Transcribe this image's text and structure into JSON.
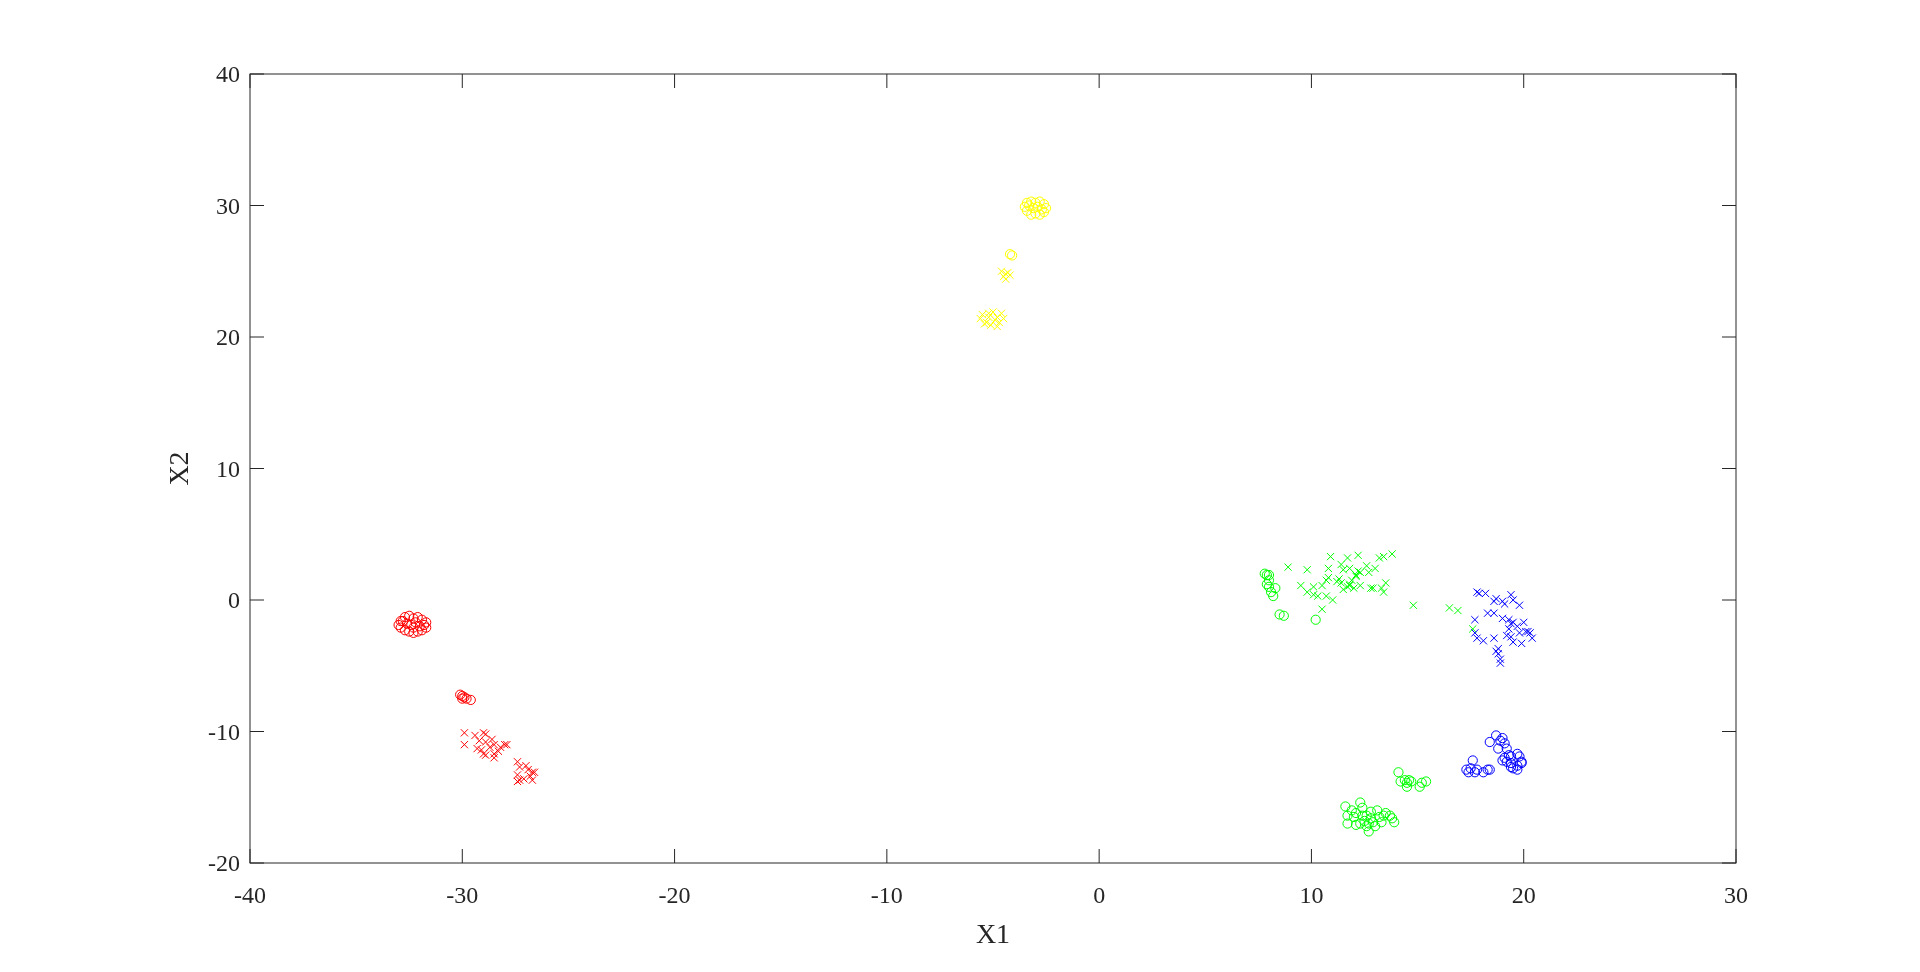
{
  "chart_data": {
    "type": "scatter",
    "xlabel": "X1",
    "ylabel": "X2",
    "xlim": [
      -40,
      30
    ],
    "xticks": [
      -40,
      -30,
      -20,
      -10,
      0,
      10,
      20,
      30
    ],
    "ylim": [
      -20,
      40
    ],
    "yticks": [
      -20,
      -10,
      0,
      10,
      20,
      30,
      40
    ],
    "series": [
      {
        "color": "#ff0000",
        "marker": "circle",
        "x": [
          -32.9,
          -32.7,
          -32.5,
          -32.3,
          -32.1,
          -31.9,
          -31.7,
          -31.7,
          -31.9,
          -32.1,
          -32.3,
          -32.5,
          -32.7,
          -32.9,
          -33.0,
          -32.6,
          -32.4,
          -32.2,
          -32.0,
          -32.8,
          -32.3,
          -31.8,
          -30.1,
          -30.0,
          -29.9,
          -29.8,
          -29.6,
          -30.0
        ],
        "values": [
          -1.6,
          -1.3,
          -1.2,
          -1.4,
          -1.3,
          -1.5,
          -1.7,
          -2.1,
          -2.3,
          -2.4,
          -2.5,
          -2.4,
          -2.3,
          -2.1,
          -1.9,
          -1.8,
          -1.9,
          -1.7,
          -2.0,
          -1.6,
          -2.1,
          -1.9,
          -7.2,
          -7.3,
          -7.4,
          -7.5,
          -7.6,
          -7.5
        ]
      },
      {
        "color": "#ff0000",
        "marker": "cross",
        "x": [
          -29.9,
          -29.9,
          -29.4,
          -29.2,
          -29.0,
          -28.9,
          -28.9,
          -28.6,
          -28.5,
          -29.3,
          -29.1,
          -29.0,
          -28.9,
          -28.5,
          -28.5,
          -28.3,
          -28.2,
          -28.0,
          -27.9,
          -28.7,
          -27.4,
          -27.3,
          -27.0,
          -26.9,
          -26.7,
          -27.4,
          -27.3,
          -27.1,
          -26.8,
          -26.7,
          -26.6,
          -27.4
        ],
        "values": [
          -10.1,
          -11.0,
          -10.3,
          -10.7,
          -10.1,
          -10.2,
          -10.8,
          -10.6,
          -11.0,
          -11.3,
          -11.4,
          -11.7,
          -11.8,
          -12.0,
          -11.7,
          -11.5,
          -11.2,
          -11.0,
          -11.0,
          -11.2,
          -12.3,
          -12.7,
          -12.6,
          -12.9,
          -13.1,
          -13.3,
          -13.7,
          -13.6,
          -13.4,
          -13.7,
          -13.1,
          -13.8
        ]
      },
      {
        "color": "#ffff00",
        "marker": "circle",
        "x": [
          -3.5,
          -3.4,
          -3.2,
          -3.0,
          -2.8,
          -2.6,
          -2.5,
          -2.6,
          -2.8,
          -3.0,
          -3.2,
          -3.4,
          -3.1,
          -2.9,
          -3.3,
          -2.7,
          -4.2,
          -4.1
        ],
        "values": [
          29.9,
          30.2,
          30.3,
          30.2,
          30.3,
          30.1,
          29.8,
          29.5,
          29.3,
          29.4,
          29.3,
          29.6,
          29.8,
          29.9,
          30.0,
          29.7,
          26.3,
          26.2
        ]
      },
      {
        "color": "#ffff00",
        "marker": "cross",
        "x": [
          -4.6,
          -4.4,
          -4.3,
          -4.5,
          -4.4,
          -4.2,
          -5.6,
          -5.5,
          -5.3,
          -5.2,
          -5.0,
          -4.9,
          -4.8,
          -4.7,
          -4.5,
          -5.1,
          -4.8,
          -5.2,
          -5.4,
          -4.6
        ],
        "values": [
          25.0,
          24.8,
          24.9,
          24.6,
          24.4,
          24.7,
          21.4,
          21.7,
          21.1,
          21.5,
          21.9,
          21.3,
          21.5,
          21.1,
          21.4,
          20.9,
          20.8,
          21.8,
          21.0,
          21.8
        ]
      },
      {
        "color": "#00ff00",
        "marker": "circle",
        "x": [
          7.8,
          7.9,
          8.0,
          8.0,
          7.9,
          8.0,
          8.3,
          8.1,
          8.2,
          8.5,
          8.7,
          10.2,
          11.6,
          11.7,
          11.9,
          11.7,
          12.0,
          12.1,
          12.3,
          12.4,
          12.4,
          12.3,
          12.5,
          12.6,
          12.7,
          12.8,
          12.8,
          12.9,
          13.1,
          13.2,
          13.3,
          13.4,
          13.5,
          13.7,
          13.8,
          13.9,
          12.7,
          13.0,
          12.6,
          12.1,
          14.1,
          14.2,
          14.4,
          14.5,
          14.5,
          14.6,
          15.1,
          15.2,
          15.4,
          14.7
        ],
        "values": [
          2.0,
          1.9,
          1.9,
          1.5,
          1.2,
          1.0,
          0.9,
          0.6,
          0.3,
          -1.1,
          -1.2,
          -1.5,
          -15.7,
          -16.4,
          -16.0,
          -17.0,
          -16.5,
          -16.2,
          -15.4,
          -15.8,
          -16.4,
          -17.0,
          -16.8,
          -17.2,
          -17.6,
          -16.6,
          -16.1,
          -16.9,
          -16.0,
          -16.5,
          -16.9,
          -16.4,
          -16.2,
          -16.4,
          -16.6,
          -16.9,
          -17.0,
          -17.2,
          -16.4,
          -17.1,
          -13.1,
          -13.8,
          -13.7,
          -13.9,
          -14.2,
          -13.7,
          -14.2,
          -13.9,
          -13.8,
          -13.8
        ]
      },
      {
        "color": "#00ff00",
        "marker": "cross",
        "x": [
          8.9,
          9.8,
          10.8,
          10.9,
          11.7,
          12.2,
          13.2,
          13.4,
          13.8,
          11.4,
          11.5,
          11.8,
          12.2,
          12.6,
          12.7,
          13.0,
          9.5,
          9.8,
          10.1,
          10.1,
          10.3,
          10.5,
          10.7,
          10.8,
          10.7,
          11.0,
          11.2,
          11.3,
          11.4,
          11.5,
          11.7,
          11.8,
          11.9,
          12.1,
          12.1,
          12.3,
          12.3,
          12.0,
          11.8,
          12.8,
          12.9,
          13.3,
          13.4,
          13.5,
          10.5,
          14.8,
          16.5,
          16.9,
          17.6
        ],
        "values": [
          2.5,
          2.3,
          2.4,
          3.3,
          3.2,
          3.4,
          3.2,
          3.3,
          3.5,
          2.7,
          2.3,
          2.4,
          2.2,
          2.6,
          2.1,
          2.4,
          1.1,
          0.6,
          1.0,
          0.4,
          0.3,
          1.1,
          1.5,
          1.7,
          0.3,
          0.0,
          1.4,
          1.6,
          1.3,
          0.8,
          1.0,
          1.2,
          1.5,
          1.8,
          1.9,
          2.1,
          1.1,
          0.9,
          1.1,
          0.9,
          0.9,
          0.9,
          0.6,
          1.3,
          -0.7,
          -0.4,
          -0.6,
          -0.8,
          -2.2
        ]
      },
      {
        "color": "#0000ff",
        "marker": "circle",
        "x": [
          17.6,
          17.3,
          17.4,
          17.5,
          17.7,
          17.8,
          18.1,
          18.3,
          18.4,
          18.4,
          18.7,
          18.9,
          19.0,
          19.1,
          18.8,
          19.2,
          19.3,
          19.4,
          19.0,
          19.2,
          19.4,
          19.7,
          19.8,
          19.7,
          19.9,
          19.5,
          19.7,
          19.4,
          19.9,
          19.1
        ],
        "values": [
          -12.2,
          -12.9,
          -13.1,
          -12.8,
          -13.1,
          -12.9,
          -13.1,
          -12.9,
          -12.9,
          -10.8,
          -10.3,
          -10.7,
          -10.5,
          -10.9,
          -11.3,
          -11.3,
          -11.8,
          -11.9,
          -12.2,
          -12.3,
          -12.4,
          -11.7,
          -11.9,
          -12.6,
          -12.3,
          -12.8,
          -12.9,
          -12.7,
          -12.4,
          -12.0
        ]
      },
      {
        "color": "#0000ff",
        "marker": "cross",
        "x": [
          17.8,
          17.9,
          18.2,
          18.7,
          19.0,
          19.1,
          19.4,
          19.5,
          19.8,
          18.6,
          18.3,
          18.6,
          19.0,
          19.3,
          19.4,
          19.5,
          19.7,
          20.0,
          19.8,
          20.1,
          20.2,
          20.3,
          20.4,
          17.7,
          17.7,
          17.8,
          18.1,
          18.6,
          19.4,
          19.5,
          19.9,
          19.3,
          19.2,
          18.8,
          18.8,
          18.9,
          18.9,
          18.7
        ],
        "values": [
          0.6,
          0.5,
          0.5,
          0.1,
          -0.1,
          -0.3,
          0.4,
          0.0,
          -0.4,
          -0.1,
          -1.0,
          -1.0,
          -1.4,
          -1.5,
          -1.8,
          -1.7,
          -2.0,
          -1.7,
          -2.5,
          -2.4,
          -2.4,
          -2.5,
          -2.9,
          -1.5,
          -2.5,
          -2.9,
          -3.1,
          -2.9,
          -2.8,
          -3.2,
          -3.3,
          -2.2,
          -2.7,
          -3.7,
          -4.1,
          -4.5,
          -4.8,
          -3.9
        ]
      }
    ]
  }
}
